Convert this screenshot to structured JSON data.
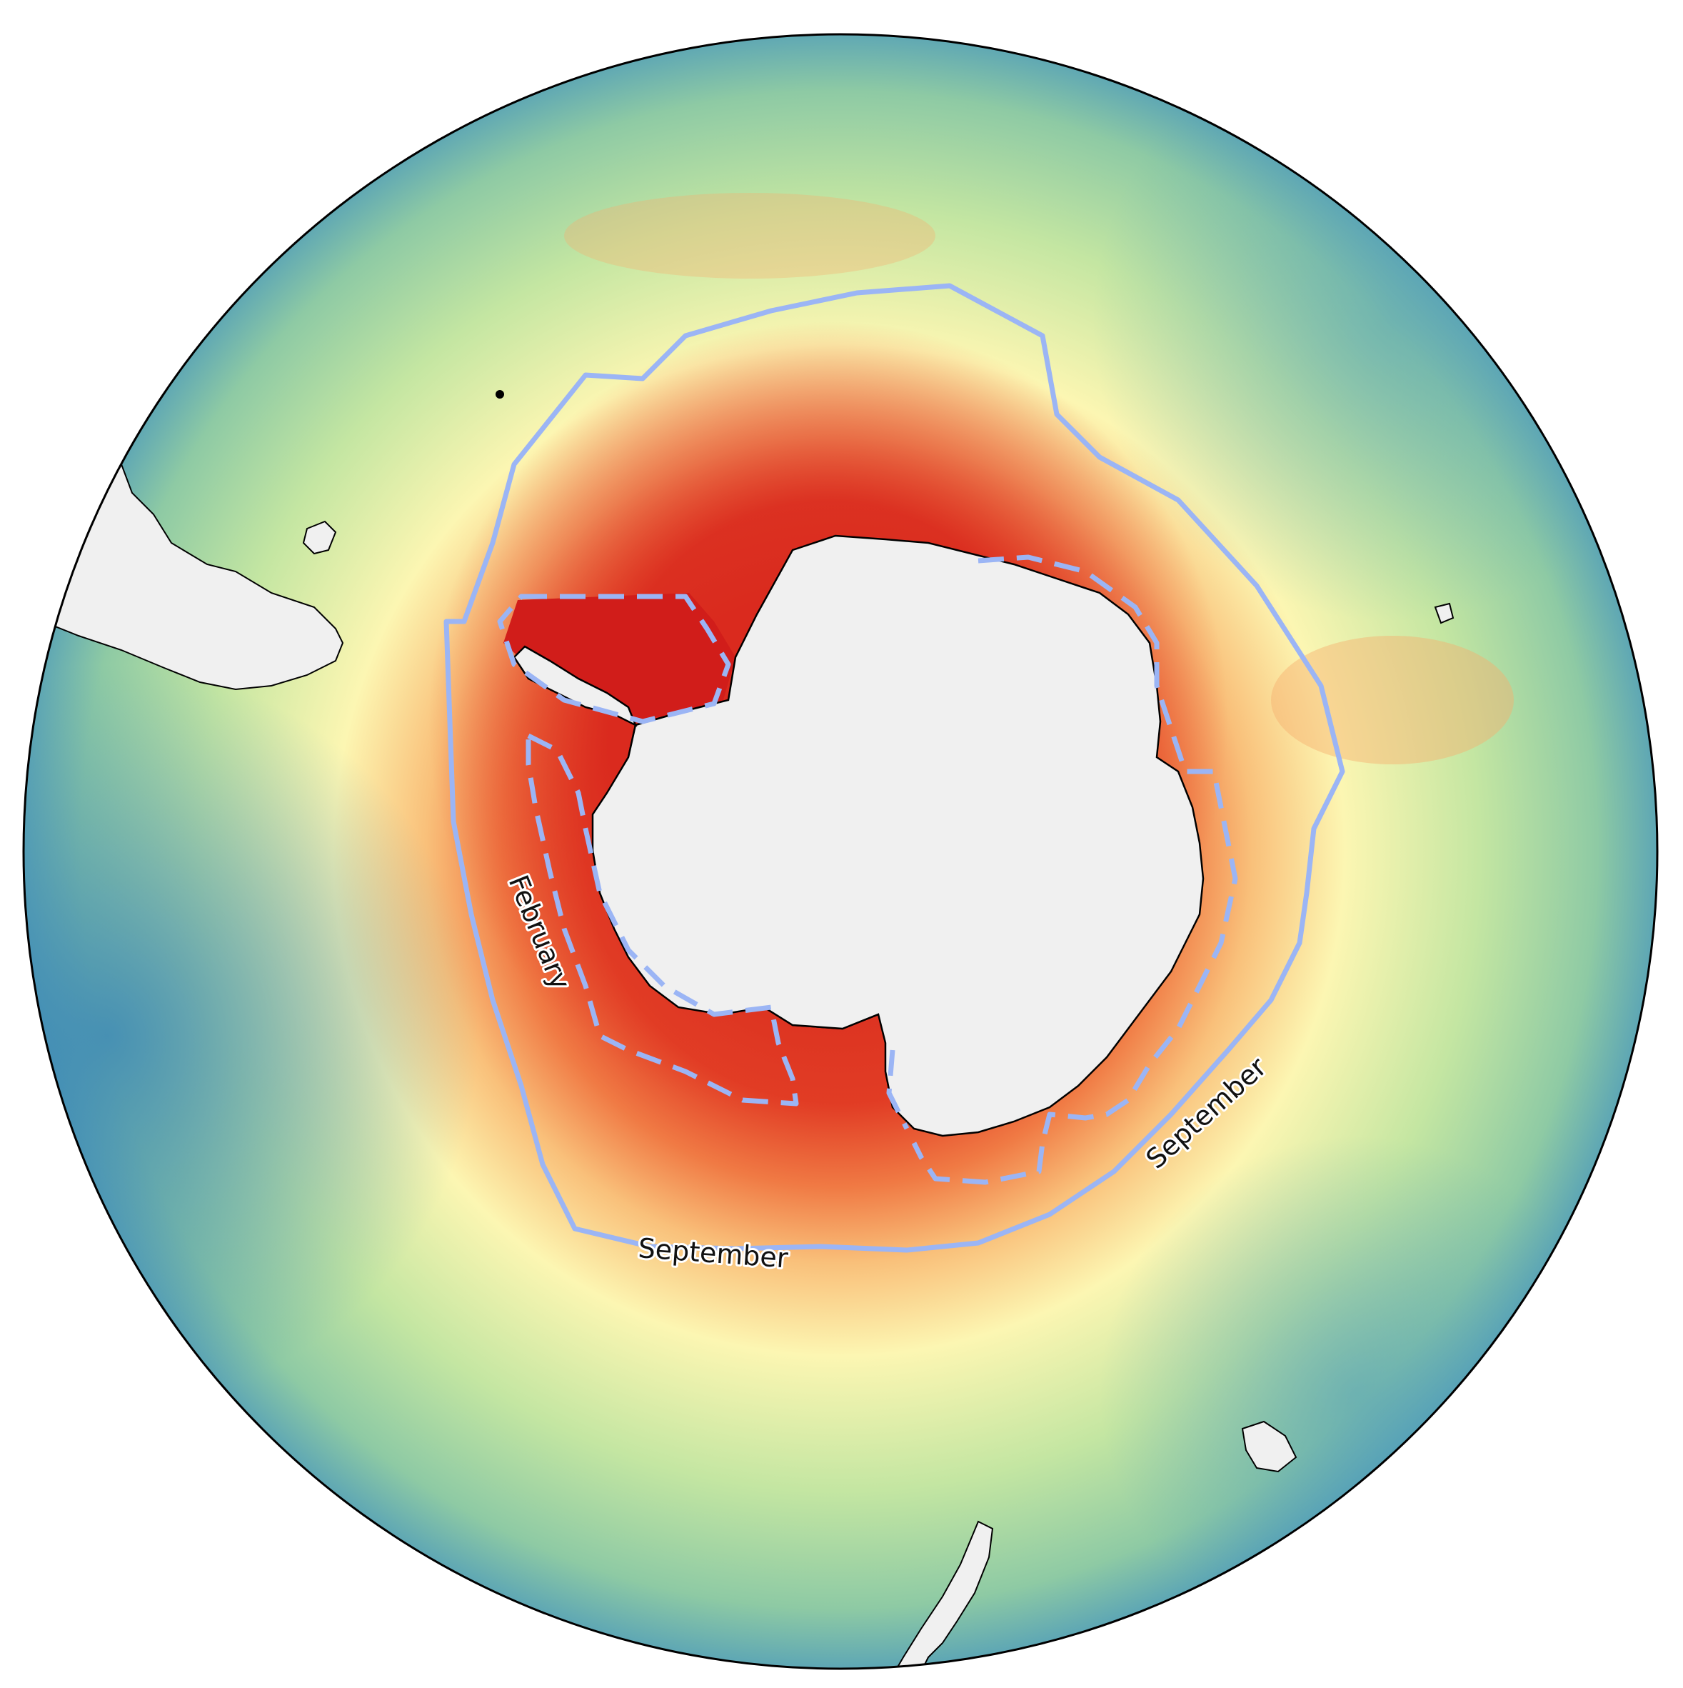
{
  "map": {
    "projection": "south-polar-stereographic",
    "colormap": "Spectral",
    "colors": {
      "ocean_far": "#3f8fb8",
      "ocean_mid": "#a9dba4",
      "ocean_light": "#fbf7b4",
      "ocean_warm": "#f8bd74",
      "ocean_hot": "#d8281e",
      "land": "#f0f0f0",
      "ice_shelf": "#d4e5ef",
      "coastline": "#000000",
      "contour": "#9bb5f5"
    },
    "contours": [
      {
        "name": "February",
        "style": "dashed",
        "label": "February"
      },
      {
        "name": "September",
        "style": "solid",
        "labels": [
          "September",
          "September"
        ]
      }
    ]
  }
}
